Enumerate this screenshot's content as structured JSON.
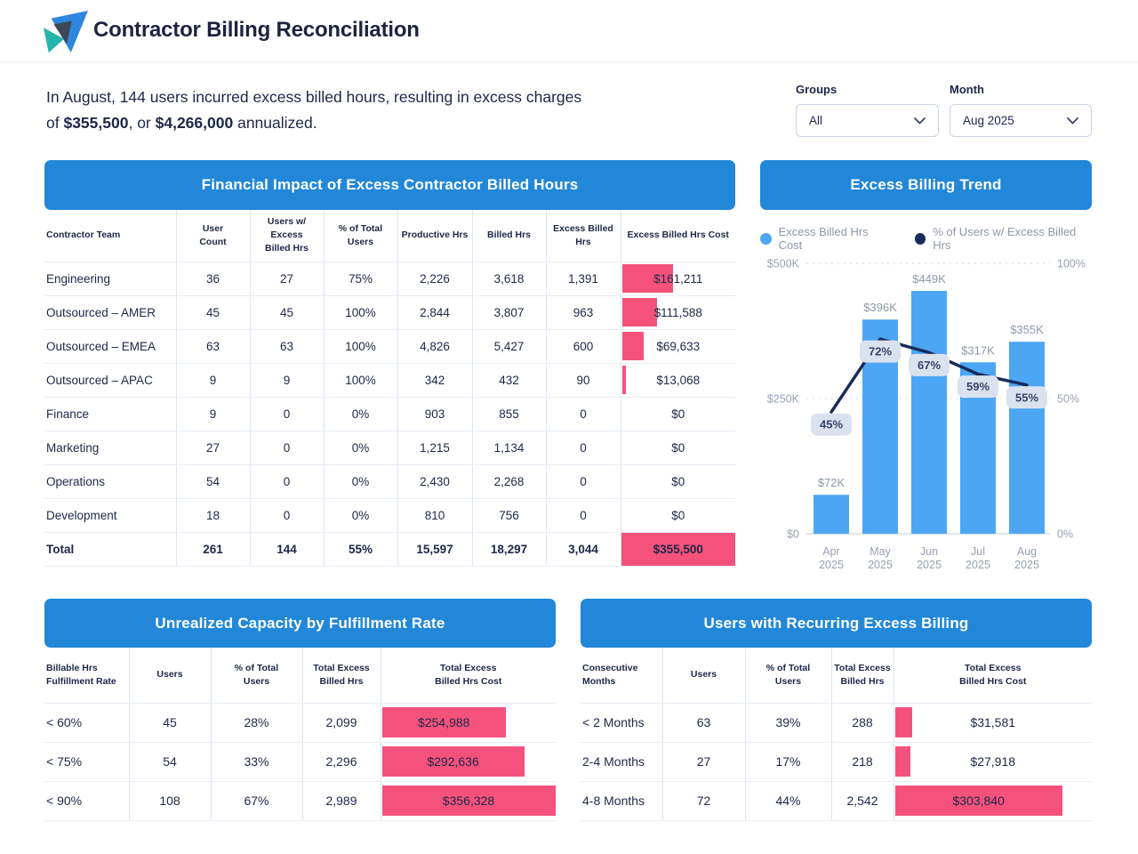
{
  "header": {
    "title": "Contractor Billing Reconciliation"
  },
  "summary": {
    "segments": [
      {
        "text": "In August, 144 users incurred excess billed hours, resulting in excess charges",
        "bold": false,
        "break_after": true
      },
      {
        "text": "of ",
        "bold": false,
        "break_after": false
      },
      {
        "text": "$355,500",
        "bold": true,
        "break_after": false
      },
      {
        "text": ", or ",
        "bold": false,
        "break_after": false
      },
      {
        "text": "$4,266,000",
        "bold": true,
        "break_after": false
      },
      {
        "text": " annualized.",
        "bold": false,
        "break_after": false
      }
    ]
  },
  "filters": {
    "groups": {
      "label": "Groups",
      "value": "All"
    },
    "month": {
      "label": "Month",
      "value": "Aug 2025"
    }
  },
  "main_table": {
    "title": "Financial Impact of Excess Contractor Billed Hours",
    "columns": [
      "Contractor Team",
      "User\nCount",
      "Users w/ Excess\nBilled Hrs",
      "% of Total\nUsers",
      "Productive Hrs",
      "Billed Hrs",
      "Excess Billed\nHrs",
      "Excess Billed Hrs Cost"
    ],
    "bar_scale": 355500,
    "bar_text_mode": "cell",
    "rows": [
      [
        "Engineering",
        "36",
        "27",
        "75%",
        "2,226",
        "3,618",
        "1,391",
        {
          "label": "$161,211",
          "value": 161211
        }
      ],
      [
        "Outsourced – AMER",
        "45",
        "45",
        "100%",
        "2,844",
        "3,807",
        "963",
        {
          "label": "$111,588",
          "value": 111588
        }
      ],
      [
        "Outsourced – EMEA",
        "63",
        "63",
        "100%",
        "4,826",
        "5,427",
        "600",
        {
          "label": "$69,633",
          "value": 69633
        }
      ],
      [
        "Outsourced – APAC",
        "9",
        "9",
        "100%",
        "342",
        "432",
        "90",
        {
          "label": "$13,068",
          "value": 13068
        }
      ],
      [
        "Finance",
        "9",
        "0",
        "0%",
        "903",
        "855",
        "0",
        {
          "label": "$0",
          "value": 0
        }
      ],
      [
        "Marketing",
        "27",
        "0",
        "0%",
        "1,215",
        "1,134",
        "0",
        {
          "label": "$0",
          "value": 0
        }
      ],
      [
        "Operations",
        "54",
        "0",
        "0%",
        "2,430",
        "2,268",
        "0",
        {
          "label": "$0",
          "value": 0
        }
      ],
      [
        "Development",
        "18",
        "0",
        "0%",
        "810",
        "756",
        "0",
        {
          "label": "$0",
          "value": 0
        }
      ]
    ],
    "total": [
      "Total",
      "261",
      "144",
      "55%",
      "15,597",
      "18,297",
      "3,044",
      {
        "label": "$355,500",
        "value": 355500,
        "fill": true
      }
    ]
  },
  "chart_data": {
    "type": "bar+line",
    "title": "Excess Billing Trend",
    "categories": [
      "Apr 2025",
      "May 2025",
      "Jun 2025",
      "Jul 2025",
      "Aug 2025"
    ],
    "series": [
      {
        "name": "Excess Billed Hrs Cost",
        "type": "bar",
        "values": [
          72000,
          396000,
          449000,
          317000,
          355000
        ],
        "labels": [
          "$72K",
          "$396K",
          "$449K",
          "$317K",
          "$355K"
        ],
        "color": "#4DA6F4"
      },
      {
        "name": "% of Users w/ Excess Billed Hrs",
        "type": "line",
        "values": [
          45,
          72,
          67,
          59,
          55
        ],
        "labels": [
          "45%",
          "72%",
          "67%",
          "59%",
          "55%"
        ],
        "color": "#1B2B5C"
      }
    ],
    "left_axis": {
      "ticks": [
        "$0",
        "$250K",
        "$500K"
      ],
      "min": 0,
      "max": 500000
    },
    "right_axis": {
      "ticks": [
        "0%",
        "50%",
        "100%"
      ],
      "min": 0,
      "max": 100
    },
    "grid": "dashed-horizontal",
    "legend_position": "top"
  },
  "capacity_table": {
    "title": "Unrealized Capacity by Fulfillment Rate",
    "columns": [
      "Billable Hrs\nFulfillment Rate",
      "Users",
      "% of Total\nUsers",
      "Total Excess\nBilled Hrs",
      "Total Excess\nBilled Hrs Cost"
    ],
    "bar_scale": 356328,
    "bar_text_mode": "auto",
    "rows": [
      [
        "< 60%",
        "45",
        "28%",
        "2,099",
        {
          "label": "$254,988",
          "value": 254988
        }
      ],
      [
        "< 75%",
        "54",
        "33%",
        "2,296",
        {
          "label": "$292,636",
          "value": 292636
        }
      ],
      [
        "< 90%",
        "108",
        "67%",
        "2,989",
        {
          "label": "$356,328",
          "value": 356328
        }
      ]
    ]
  },
  "recurring_table": {
    "title": "Users with Recurring Excess Billing",
    "columns": [
      "Consecutive\nMonths",
      "Users",
      "% of Total\nUsers",
      "Total Excess\nBilled Hrs",
      "Total Excess\nBilled Hrs Cost"
    ],
    "bar_scale": 356328,
    "bar_text_mode": "auto",
    "rows": [
      [
        "< 2 Months",
        "63",
        "39%",
        "288",
        {
          "label": "$31,581",
          "value": 31581
        }
      ],
      [
        "2-4 Months",
        "27",
        "17%",
        "218",
        {
          "label": "$27,918",
          "value": 27918
        }
      ],
      [
        "4-8 Months",
        "72",
        "44%",
        "2,542",
        {
          "label": "$303,840",
          "value": 303840
        }
      ]
    ]
  },
  "colors": {
    "banner_blue": "#2287D8",
    "chart_bar_blue": "#4DA6F4",
    "line_navy": "#1B2B5C",
    "accent_pink": "#F4527C",
    "navy_text": "#1D2747",
    "gray_text": "#8E99AB"
  }
}
